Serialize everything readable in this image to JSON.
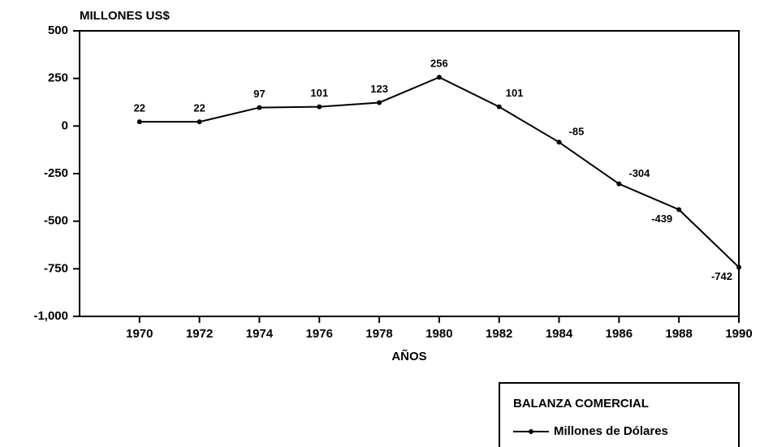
{
  "chart_data": {
    "type": "line",
    "y_axis_label": "MILLONES US$",
    "x_axis_label": "AÑOS",
    "legend_title": "BALANZA COMERCIAL",
    "legend": "bottom-right",
    "grid": false,
    "x": [
      1970,
      1972,
      1974,
      1976,
      1978,
      1980,
      1982,
      1984,
      1986,
      1988,
      1990
    ],
    "series": [
      {
        "name": "Millones de Dólares",
        "color": "#000000",
        "values": [
          22,
          22,
          97,
          101,
          123,
          256,
          101,
          -85,
          -304,
          -439,
          -742
        ]
      }
    ],
    "xlim": [
      1968,
      1990
    ],
    "xticks": [
      1970,
      1972,
      1974,
      1976,
      1978,
      1980,
      1982,
      1984,
      1986,
      1988,
      1990
    ],
    "ylim": [
      -1000,
      500
    ],
    "yticks": [
      500,
      250,
      0,
      -250,
      -500,
      -750,
      {
        "value": -1000,
        "label": "-1,000"
      }
    ]
  }
}
